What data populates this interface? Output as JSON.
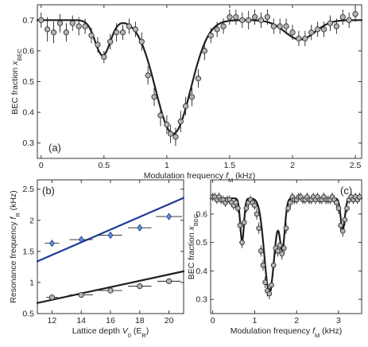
{
  "colors": {
    "marker": "#b3b3b3",
    "axis": "#231f20",
    "fit_black": "#231f20",
    "fit_blue": "#1f3a93",
    "marker_blue": "#5f8fd0"
  },
  "chart_data": [
    {
      "panel": "(a)",
      "type": "scatter",
      "xlabel": "Modulation frequency f_M (kHz)",
      "xlabel_parts": {
        "main": "Modulation frequency ",
        "var": "f",
        "sub": "M",
        "unit": " (kHz)"
      },
      "ylabel": "BEC fraction x_BEC",
      "ylabel_parts": {
        "main": "BEC fraction ",
        "var": "x",
        "sub": "BEC",
        "unit": ""
      },
      "xlim": [
        -0.03,
        2.55
      ],
      "ylim": [
        0.25,
        0.75
      ],
      "xticks": [
        0,
        0.5,
        1,
        1.5,
        2,
        2.5
      ],
      "xtick_labels": [
        "0",
        "0.5",
        "1",
        "1.5",
        "2",
        "2.5"
      ],
      "yticks": [
        0.3,
        0.4,
        0.5,
        0.6,
        0.7
      ],
      "ytick_labels": [
        "0.3",
        "0.4",
        "0.5",
        "0.6",
        "0.7"
      ],
      "points": [
        {
          "x": 0.0,
          "y": 0.7,
          "err": 0.025
        },
        {
          "x": 0.05,
          "y": 0.67,
          "err": 0.04
        },
        {
          "x": 0.1,
          "y": 0.66,
          "err": 0.035
        },
        {
          "x": 0.15,
          "y": 0.69,
          "err": 0.03
        },
        {
          "x": 0.2,
          "y": 0.66,
          "err": 0.03
        },
        {
          "x": 0.25,
          "y": 0.69,
          "err": 0.025
        },
        {
          "x": 0.3,
          "y": 0.68,
          "err": 0.03
        },
        {
          "x": 0.35,
          "y": 0.68,
          "err": 0.025
        },
        {
          "x": 0.4,
          "y": 0.65,
          "err": 0.025
        },
        {
          "x": 0.45,
          "y": 0.62,
          "err": 0.025
        },
        {
          "x": 0.5,
          "y": 0.58,
          "err": 0.02
        },
        {
          "x": 0.55,
          "y": 0.63,
          "err": 0.025
        },
        {
          "x": 0.6,
          "y": 0.66,
          "err": 0.03
        },
        {
          "x": 0.65,
          "y": 0.66,
          "err": 0.025
        },
        {
          "x": 0.7,
          "y": 0.68,
          "err": 0.025
        },
        {
          "x": 0.75,
          "y": 0.67,
          "err": 0.025
        },
        {
          "x": 0.8,
          "y": 0.63,
          "err": 0.03
        },
        {
          "x": 0.85,
          "y": 0.52,
          "err": 0.03
        },
        {
          "x": 0.9,
          "y": 0.45,
          "err": 0.03
        },
        {
          "x": 0.95,
          "y": 0.39,
          "err": 0.035
        },
        {
          "x": 1.0,
          "y": 0.36,
          "err": 0.03
        },
        {
          "x": 1.03,
          "y": 0.33,
          "err": 0.03
        },
        {
          "x": 1.07,
          "y": 0.32,
          "err": 0.03
        },
        {
          "x": 1.11,
          "y": 0.37,
          "err": 0.035
        },
        {
          "x": 1.15,
          "y": 0.42,
          "err": 0.03
        },
        {
          "x": 1.2,
          "y": 0.45,
          "err": 0.03
        },
        {
          "x": 1.25,
          "y": 0.51,
          "err": 0.03
        },
        {
          "x": 1.3,
          "y": 0.6,
          "err": 0.03
        },
        {
          "x": 1.35,
          "y": 0.65,
          "err": 0.025
        },
        {
          "x": 1.4,
          "y": 0.67,
          "err": 0.025
        },
        {
          "x": 1.45,
          "y": 0.68,
          "err": 0.025
        },
        {
          "x": 1.5,
          "y": 0.71,
          "err": 0.025
        },
        {
          "x": 1.55,
          "y": 0.71,
          "err": 0.025
        },
        {
          "x": 1.6,
          "y": 0.7,
          "err": 0.025
        },
        {
          "x": 1.65,
          "y": 0.7,
          "err": 0.03
        },
        {
          "x": 1.7,
          "y": 0.71,
          "err": 0.025
        },
        {
          "x": 1.75,
          "y": 0.7,
          "err": 0.025
        },
        {
          "x": 1.8,
          "y": 0.71,
          "err": 0.025
        },
        {
          "x": 1.85,
          "y": 0.68,
          "err": 0.025
        },
        {
          "x": 1.9,
          "y": 0.68,
          "err": 0.025
        },
        {
          "x": 1.95,
          "y": 0.68,
          "err": 0.025
        },
        {
          "x": 2.0,
          "y": 0.66,
          "err": 0.025
        },
        {
          "x": 2.05,
          "y": 0.64,
          "err": 0.025
        },
        {
          "x": 2.1,
          "y": 0.64,
          "err": 0.025
        },
        {
          "x": 2.15,
          "y": 0.66,
          "err": 0.025
        },
        {
          "x": 2.2,
          "y": 0.67,
          "err": 0.025
        },
        {
          "x": 2.25,
          "y": 0.67,
          "err": 0.025
        },
        {
          "x": 2.3,
          "y": 0.69,
          "err": 0.025
        },
        {
          "x": 2.35,
          "y": 0.68,
          "err": 0.025
        },
        {
          "x": 2.4,
          "y": 0.71,
          "err": 0.025
        },
        {
          "x": 2.45,
          "y": 0.7,
          "err": 0.025
        },
        {
          "x": 2.5,
          "y": 0.72,
          "err": 0.025
        }
      ],
      "fit": {
        "baseline": 0.7,
        "dips": [
          {
            "center": 0.49,
            "depth": 0.115,
            "width": 0.06
          },
          {
            "center": 1.05,
            "depth": 0.37,
            "width": 0.14
          },
          {
            "center": 2.06,
            "depth": 0.063,
            "width": 0.12
          }
        ]
      }
    },
    {
      "panel": "(b)",
      "type": "scatter",
      "xlabel": "Lattice depth V_0 (E_R)",
      "xlabel_parts": {
        "main": "Lattice depth ",
        "var": "V",
        "sub": "0",
        "unit": " (E",
        "unit_sub": "R",
        "unit_end": ")"
      },
      "ylabel": "Resonance frequency f_R (kHz)",
      "ylabel_parts": {
        "main": "Resonance frequency ",
        "var": "f",
        "sub": "R",
        "unit": " (kHz)"
      },
      "xlim": [
        11,
        21
      ],
      "ylim": [
        0.5,
        2.65
      ],
      "xticks": [
        12,
        14,
        16,
        18,
        20
      ],
      "xtick_labels": [
        "12",
        "14",
        "16",
        "18",
        "20"
      ],
      "yticks": [
        0.5,
        1,
        1.5,
        2,
        2.5
      ],
      "ytick_labels": [
        "0.5",
        "1",
        "1.5",
        "2",
        "2.5"
      ],
      "series": [
        {
          "marker": "diamond",
          "color": "#5f8fd0",
          "points": [
            {
              "x": 12,
              "y": 1.63,
              "xerr": 0.5,
              "yerr": 0.05
            },
            {
              "x": 14,
              "y": 1.69,
              "xerr": 0.8,
              "yerr": 0.05
            },
            {
              "x": 16,
              "y": 1.76,
              "xerr": 0.8,
              "yerr": 0.05
            },
            {
              "x": 18,
              "y": 1.88,
              "xerr": 0.8,
              "yerr": 0.05
            },
            {
              "x": 20,
              "y": 2.06,
              "xerr": 0.9,
              "yerr": 0.05
            }
          ],
          "line": {
            "x": [
              11,
              21
            ],
            "y": [
              1.34,
              2.36
            ],
            "color": "#1f3a93"
          }
        },
        {
          "marker": "circle",
          "color": "#b3b3b3",
          "points": [
            {
              "x": 12,
              "y": 0.76,
              "xerr": 0.4,
              "yerr": 0.03
            },
            {
              "x": 14,
              "y": 0.8,
              "xerr": 0.8,
              "yerr": 0.03
            },
            {
              "x": 16,
              "y": 0.87,
              "xerr": 0.8,
              "yerr": 0.03
            },
            {
              "x": 18,
              "y": 0.94,
              "xerr": 0.8,
              "yerr": 0.03
            },
            {
              "x": 20,
              "y": 1.02,
              "xerr": 0.8,
              "yerr": 0.03
            }
          ],
          "line": {
            "x": [
              11,
              21
            ],
            "y": [
              0.67,
              1.18
            ],
            "color": "#231f20"
          }
        }
      ]
    },
    {
      "panel": "(c)",
      "type": "scatter",
      "xlabel": "Modulation frequency f_M (kHz)",
      "xlabel_parts": {
        "main": "Modulation frequency ",
        "var": "f",
        "sub": "M",
        "unit": " (kHz)"
      },
      "ylabel": "BEC fraction x_BEC",
      "ylabel_parts": {
        "main": "BEC fraction ",
        "var": "x",
        "sub": "BEC",
        "unit": ""
      },
      "xlim": [
        -0.05,
        3.55
      ],
      "ylim": [
        0.25,
        0.72
      ],
      "xticks": [
        0,
        1,
        2,
        3
      ],
      "xtick_labels": [
        "0",
        "1",
        "2",
        "3"
      ],
      "yticks": [
        0.3,
        0.4,
        0.5,
        0.6
      ],
      "ytick_labels": [
        "0.3",
        "0.4",
        "0.5",
        "0.6"
      ],
      "points": [
        {
          "x": 0.0,
          "y": 0.66,
          "err": 0.015
        },
        {
          "x": 0.05,
          "y": 0.66,
          "err": 0.015
        },
        {
          "x": 0.1,
          "y": 0.65,
          "err": 0.015
        },
        {
          "x": 0.15,
          "y": 0.66,
          "err": 0.015
        },
        {
          "x": 0.2,
          "y": 0.65,
          "err": 0.015
        },
        {
          "x": 0.25,
          "y": 0.65,
          "err": 0.015
        },
        {
          "x": 0.3,
          "y": 0.64,
          "err": 0.015
        },
        {
          "x": 0.35,
          "y": 0.65,
          "err": 0.015
        },
        {
          "x": 0.4,
          "y": 0.65,
          "err": 0.015
        },
        {
          "x": 0.45,
          "y": 0.64,
          "err": 0.015
        },
        {
          "x": 0.5,
          "y": 0.63,
          "err": 0.015
        },
        {
          "x": 0.55,
          "y": 0.64,
          "err": 0.015
        },
        {
          "x": 0.6,
          "y": 0.62,
          "err": 0.015
        },
        {
          "x": 0.65,
          "y": 0.56,
          "err": 0.02
        },
        {
          "x": 0.7,
          "y": 0.5,
          "err": 0.02
        },
        {
          "x": 0.75,
          "y": 0.57,
          "err": 0.02
        },
        {
          "x": 0.8,
          "y": 0.62,
          "err": 0.015
        },
        {
          "x": 0.85,
          "y": 0.64,
          "err": 0.015
        },
        {
          "x": 0.9,
          "y": 0.65,
          "err": 0.015
        },
        {
          "x": 0.95,
          "y": 0.64,
          "err": 0.015
        },
        {
          "x": 1.0,
          "y": 0.63,
          "err": 0.015
        },
        {
          "x": 1.05,
          "y": 0.6,
          "err": 0.02
        },
        {
          "x": 1.1,
          "y": 0.55,
          "err": 0.02
        },
        {
          "x": 1.15,
          "y": 0.47,
          "err": 0.02
        },
        {
          "x": 1.2,
          "y": 0.42,
          "err": 0.02
        },
        {
          "x": 1.25,
          "y": 0.36,
          "err": 0.02
        },
        {
          "x": 1.3,
          "y": 0.33,
          "err": 0.02
        },
        {
          "x": 1.35,
          "y": 0.32,
          "err": 0.02
        },
        {
          "x": 1.4,
          "y": 0.35,
          "err": 0.02
        },
        {
          "x": 1.45,
          "y": 0.42,
          "err": 0.02
        },
        {
          "x": 1.5,
          "y": 0.48,
          "err": 0.02
        },
        {
          "x": 1.55,
          "y": 0.47,
          "err": 0.02
        },
        {
          "x": 1.6,
          "y": 0.49,
          "err": 0.02
        },
        {
          "x": 1.65,
          "y": 0.46,
          "err": 0.02
        },
        {
          "x": 1.7,
          "y": 0.48,
          "err": 0.02
        },
        {
          "x": 1.75,
          "y": 0.55,
          "err": 0.02
        },
        {
          "x": 1.8,
          "y": 0.62,
          "err": 0.015
        },
        {
          "x": 1.85,
          "y": 0.64,
          "err": 0.015
        },
        {
          "x": 1.9,
          "y": 0.66,
          "err": 0.015
        },
        {
          "x": 1.95,
          "y": 0.65,
          "err": 0.015
        },
        {
          "x": 2.0,
          "y": 0.65,
          "err": 0.015
        },
        {
          "x": 2.05,
          "y": 0.66,
          "err": 0.015
        },
        {
          "x": 2.1,
          "y": 0.66,
          "err": 0.015
        },
        {
          "x": 2.15,
          "y": 0.65,
          "err": 0.015
        },
        {
          "x": 2.2,
          "y": 0.65,
          "err": 0.015
        },
        {
          "x": 2.25,
          "y": 0.66,
          "err": 0.015
        },
        {
          "x": 2.3,
          "y": 0.65,
          "err": 0.015
        },
        {
          "x": 2.35,
          "y": 0.65,
          "err": 0.015
        },
        {
          "x": 2.4,
          "y": 0.66,
          "err": 0.015
        },
        {
          "x": 2.45,
          "y": 0.65,
          "err": 0.015
        },
        {
          "x": 2.5,
          "y": 0.66,
          "err": 0.015
        },
        {
          "x": 2.55,
          "y": 0.65,
          "err": 0.015
        },
        {
          "x": 2.6,
          "y": 0.65,
          "err": 0.015
        },
        {
          "x": 2.65,
          "y": 0.66,
          "err": 0.015
        },
        {
          "x": 2.7,
          "y": 0.65,
          "err": 0.015
        },
        {
          "x": 2.75,
          "y": 0.65,
          "err": 0.015
        },
        {
          "x": 2.8,
          "y": 0.65,
          "err": 0.015
        },
        {
          "x": 2.85,
          "y": 0.66,
          "err": 0.015
        },
        {
          "x": 2.9,
          "y": 0.65,
          "err": 0.015
        },
        {
          "x": 2.95,
          "y": 0.64,
          "err": 0.015
        },
        {
          "x": 3.0,
          "y": 0.62,
          "err": 0.02
        },
        {
          "x": 3.05,
          "y": 0.56,
          "err": 0.02
        },
        {
          "x": 3.1,
          "y": 0.54,
          "err": 0.02
        },
        {
          "x": 3.15,
          "y": 0.58,
          "err": 0.02
        },
        {
          "x": 3.2,
          "y": 0.62,
          "err": 0.015
        },
        {
          "x": 3.25,
          "y": 0.65,
          "err": 0.015
        },
        {
          "x": 3.3,
          "y": 0.66,
          "err": 0.015
        },
        {
          "x": 3.35,
          "y": 0.65,
          "err": 0.015
        },
        {
          "x": 3.4,
          "y": 0.66,
          "err": 0.015
        },
        {
          "x": 3.45,
          "y": 0.65,
          "err": 0.015
        },
        {
          "x": 3.5,
          "y": 0.66,
          "err": 0.015
        }
      ],
      "fit": {
        "baseline": 0.655,
        "dips": [
          {
            "center": 0.7,
            "depth": 0.15,
            "width": 0.045
          },
          {
            "center": 1.35,
            "depth": 0.33,
            "width": 0.12
          },
          {
            "center": 1.66,
            "depth": 0.17,
            "width": 0.06
          },
          {
            "center": 3.1,
            "depth": 0.11,
            "width": 0.05
          }
        ]
      }
    }
  ]
}
